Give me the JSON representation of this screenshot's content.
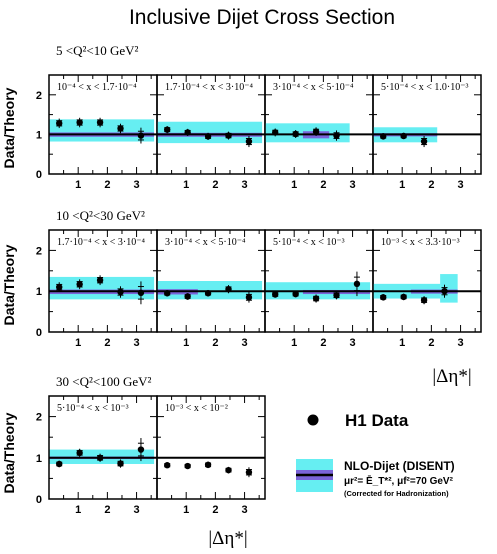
{
  "chart_data": {
    "type": "scatter",
    "title": "Inclusive Dijet Cross Section",
    "ylabel": "Data/Theory",
    "xlabel": "|Δη*|",
    "xlim": [
      0,
      3.7
    ],
    "ylim": [
      0,
      2.5
    ],
    "y_ticks": [
      "0",
      "1",
      "2"
    ],
    "x_ticks": [
      "1",
      "2",
      "3"
    ],
    "legend": {
      "data_label": "H1 Data",
      "theory_label": "NLO-Dijet (DISENT)",
      "scale_label": "μr²= Ē_T*², μf²=70 GeV²",
      "note": "(Corrected for Hadronization)"
    },
    "colors": {
      "band": "#66eef2",
      "hadr_band": "#7a64d8",
      "line": "#000000"
    },
    "rows": [
      {
        "q2_label": "5 <Q²<10 GeV²",
        "panels": [
          {
            "x_range": "10⁻⁴ < x < 1.7·10⁻⁴",
            "points": [
              {
                "x": 0.35,
                "y": 1.28,
                "err": 0.12
              },
              {
                "x": 1.05,
                "y": 1.3,
                "err": 0.12
              },
              {
                "x": 1.75,
                "y": 1.3,
                "err": 0.12
              },
              {
                "x": 2.45,
                "y": 1.15,
                "err": 0.12
              },
              {
                "x": 3.15,
                "y": 0.97,
                "err": 0.2
              }
            ],
            "band": [
              {
                "x0": 0.0,
                "x1": 3.6,
                "lo": 0.82,
                "hi": 1.38
              }
            ],
            "hadr": [
              {
                "x0": 0.0,
                "x1": 3.6,
                "lo": 0.94,
                "hi": 1.05
              }
            ]
          },
          {
            "x_range": "1.7·10⁻⁴ < x < 3·10⁻⁴",
            "points": [
              {
                "x": 0.35,
                "y": 1.12,
                "err": 0.09
              },
              {
                "x": 1.05,
                "y": 1.05,
                "err": 0.09
              },
              {
                "x": 1.75,
                "y": 0.95,
                "err": 0.09
              },
              {
                "x": 2.45,
                "y": 0.97,
                "err": 0.1
              },
              {
                "x": 3.15,
                "y": 0.82,
                "err": 0.14
              }
            ],
            "band": [
              {
                "x0": 0.0,
                "x1": 3.6,
                "lo": 0.78,
                "hi": 1.32
              }
            ],
            "hadr": [
              {
                "x0": 0.0,
                "x1": 3.6,
                "lo": 0.94,
                "hi": 1.04
              }
            ]
          },
          {
            "x_range": "3·10⁻⁴ < x < 5·10⁻⁴",
            "points": [
              {
                "x": 0.35,
                "y": 1.05,
                "err": 0.1
              },
              {
                "x": 1.05,
                "y": 1.01,
                "err": 0.1
              },
              {
                "x": 1.75,
                "y": 1.07,
                "err": 0.11
              },
              {
                "x": 2.45,
                "y": 0.97,
                "err": 0.13
              }
            ],
            "band": [
              {
                "x0": 0.0,
                "x1": 2.9,
                "lo": 0.8,
                "hi": 1.28
              }
            ],
            "hadr": [
              {
                "x0": 1.3,
                "x1": 2.2,
                "lo": 0.9,
                "hi": 1.08
              }
            ]
          },
          {
            "x_range": "5·10⁻⁴ < x < 1.0·10⁻³",
            "points": [
              {
                "x": 0.35,
                "y": 0.95,
                "err": 0.08
              },
              {
                "x": 1.05,
                "y": 0.96,
                "err": 0.08
              },
              {
                "x": 1.75,
                "y": 0.82,
                "err": 0.14
              }
            ],
            "band": [
              {
                "x0": 0.0,
                "x1": 2.2,
                "lo": 0.8,
                "hi": 1.18
              }
            ],
            "hadr": [
              {
                "x0": 0.0,
                "x1": 2.2,
                "lo": 0.95,
                "hi": 1.03
              }
            ]
          }
        ]
      },
      {
        "q2_label": "10 <Q²<30 GeV²",
        "panels": [
          {
            "x_range": "1.7·10⁻⁴ < x < 3·10⁻⁴",
            "points": [
              {
                "x": 0.35,
                "y": 1.1,
                "err": 0.12
              },
              {
                "x": 1.05,
                "y": 1.17,
                "err": 0.12
              },
              {
                "x": 1.75,
                "y": 1.27,
                "err": 0.12
              },
              {
                "x": 2.45,
                "y": 0.98,
                "err": 0.14
              },
              {
                "x": 3.15,
                "y": 0.96,
                "err": 0.28
              }
            ],
            "band": [
              {
                "x0": 0.0,
                "x1": 3.6,
                "lo": 0.8,
                "hi": 1.35
              }
            ],
            "hadr": [
              {
                "x0": 0.0,
                "x1": 3.6,
                "lo": 0.93,
                "hi": 1.04
              }
            ]
          },
          {
            "x_range": "3·10⁻⁴ < x < 5·10⁻⁴",
            "points": [
              {
                "x": 0.35,
                "y": 0.95,
                "err": 0.08
              },
              {
                "x": 1.05,
                "y": 0.87,
                "err": 0.08
              },
              {
                "x": 1.75,
                "y": 0.95,
                "err": 0.08
              },
              {
                "x": 2.45,
                "y": 1.05,
                "err": 0.1
              },
              {
                "x": 3.15,
                "y": 0.85,
                "err": 0.13
              }
            ],
            "band": [
              {
                "x0": 0.0,
                "x1": 3.6,
                "lo": 0.8,
                "hi": 1.25
              }
            ],
            "hadr": [
              {
                "x0": 0.0,
                "x1": 1.4,
                "lo": 0.92,
                "hi": 1.05
              }
            ]
          },
          {
            "x_range": "5·10⁻⁴ < x < 10⁻³",
            "points": [
              {
                "x": 0.35,
                "y": 0.92,
                "err": 0.08
              },
              {
                "x": 1.05,
                "y": 0.93,
                "err": 0.08
              },
              {
                "x": 1.75,
                "y": 0.82,
                "err": 0.1
              },
              {
                "x": 2.45,
                "y": 0.9,
                "err": 0.1
              },
              {
                "x": 3.15,
                "y": 1.18,
                "err": 0.3
              }
            ],
            "band": [
              {
                "x0": 0.0,
                "x1": 3.6,
                "lo": 0.8,
                "hi": 1.22
              }
            ],
            "hadr": [
              {
                "x0": 1.3,
                "x1": 3.6,
                "lo": 0.93,
                "hi": 1.03
              }
            ]
          },
          {
            "x_range": "10⁻³ < x < 3.3·10⁻³",
            "points": [
              {
                "x": 0.35,
                "y": 0.85,
                "err": 0.08
              },
              {
                "x": 1.05,
                "y": 0.86,
                "err": 0.08
              },
              {
                "x": 1.75,
                "y": 0.78,
                "err": 0.1
              },
              {
                "x": 2.45,
                "y": 1.0,
                "err": 0.16
              }
            ],
            "band": [
              {
                "x0": 0.0,
                "x1": 2.3,
                "lo": 0.82,
                "hi": 1.18
              },
              {
                "x0": 2.3,
                "x1": 2.9,
                "lo": 0.72,
                "hi": 1.42
              }
            ],
            "hadr": [
              {
                "x0": 1.3,
                "x1": 2.9,
                "lo": 0.94,
                "hi": 1.04
              }
            ]
          }
        ]
      },
      {
        "q2_label": "30 <Q²<100 GeV²",
        "panels": [
          {
            "x_range": "5·10⁻⁴ < x < 10⁻³",
            "points": [
              {
                "x": 0.35,
                "y": 0.85,
                "err": 0.08
              },
              {
                "x": 1.05,
                "y": 1.12,
                "err": 0.1
              },
              {
                "x": 1.75,
                "y": 1.0,
                "err": 0.1
              },
              {
                "x": 2.45,
                "y": 0.86,
                "err": 0.1
              },
              {
                "x": 3.15,
                "y": 1.2,
                "err": 0.28
              }
            ],
            "band": [
              {
                "x0": 0.0,
                "x1": 3.6,
                "lo": 0.85,
                "hi": 1.2
              }
            ],
            "hadr": [
              {
                "x0": 0.0,
                "x1": 3.6,
                "lo": 0.97,
                "hi": 1.03
              }
            ]
          },
          {
            "x_range": "10⁻³ < x < 10⁻²",
            "points": [
              {
                "x": 0.35,
                "y": 0.82,
                "err": 0.07
              },
              {
                "x": 1.05,
                "y": 0.8,
                "err": 0.07
              },
              {
                "x": 1.75,
                "y": 0.83,
                "err": 0.08
              },
              {
                "x": 2.45,
                "y": 0.7,
                "err": 0.08
              },
              {
                "x": 3.15,
                "y": 0.65,
                "err": 0.12
              }
            ],
            "band": [],
            "hadr": []
          }
        ]
      }
    ]
  }
}
